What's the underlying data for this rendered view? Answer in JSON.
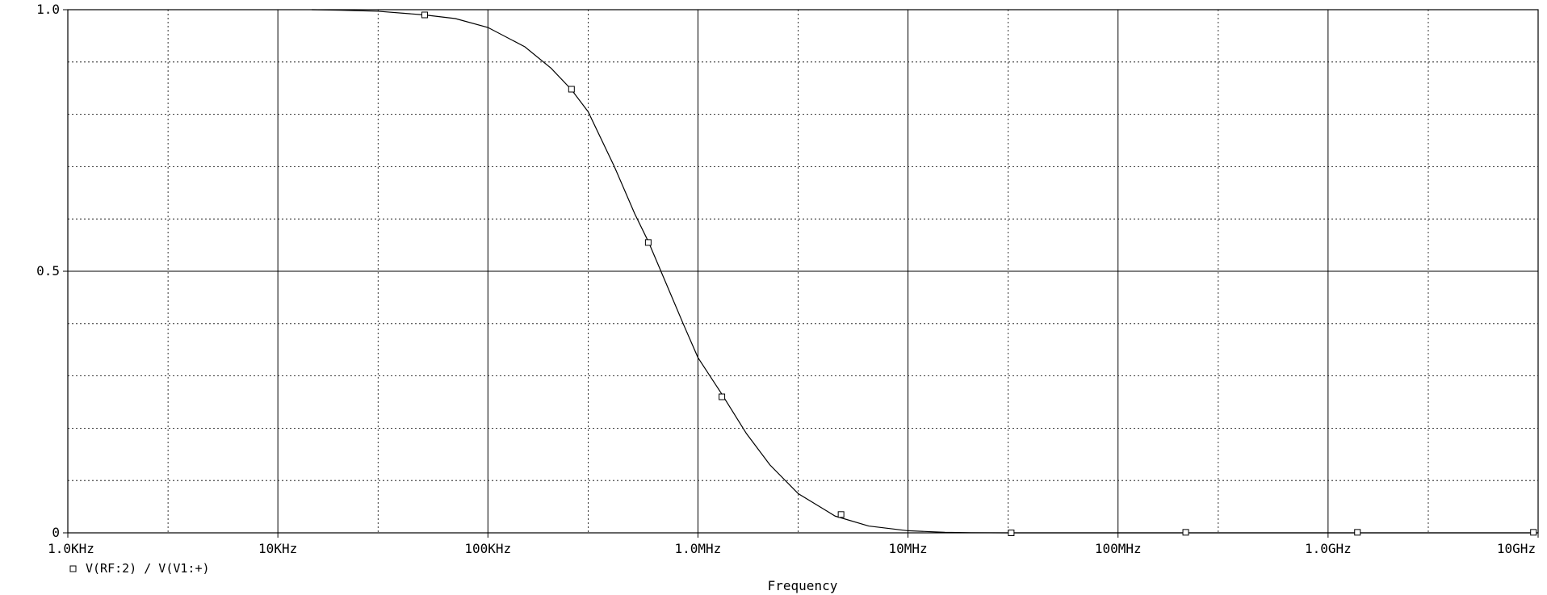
{
  "chart_data": {
    "type": "line",
    "title": "",
    "xlabel": "Frequency",
    "ylabel": "",
    "x_scale": "log",
    "x_unit": "Hz",
    "xlim": [
      1000,
      10000000000
    ],
    "ylim": [
      0,
      1.0
    ],
    "x_ticks": [
      {
        "value": 1000,
        "label": "1.0KHz"
      },
      {
        "value": 10000,
        "label": "10KHz"
      },
      {
        "value": 100000,
        "label": "100KHz"
      },
      {
        "value": 1000000,
        "label": "1.0MHz"
      },
      {
        "value": 10000000,
        "label": "10MHz"
      },
      {
        "value": 100000000,
        "label": "100MHz"
      },
      {
        "value": 1000000000,
        "label": "1.0GHz"
      },
      {
        "value": 10000000000,
        "label": "10GHz"
      }
    ],
    "y_ticks": [
      {
        "value": 0,
        "label": "0"
      },
      {
        "value": 0.5,
        "label": "0.5"
      },
      {
        "value": 1.0,
        "label": "1.0"
      }
    ],
    "grid": true,
    "legend_position": "bottom-left",
    "series": [
      {
        "name": "V(RF:2) / V(V1:+)",
        "marker": "square",
        "x": [
          14500,
          20000,
          30000,
          50000,
          70000,
          100000,
          150000,
          200000,
          250000,
          300000,
          400000,
          500000,
          580000,
          700000,
          850000,
          1000000,
          1300000,
          1700000,
          2200000,
          3000000,
          4500000,
          6500000,
          10000000,
          15000000,
          20000000,
          30000000,
          50000000,
          100000000,
          200000000,
          500000000,
          1000000000,
          1350000000,
          3000000000,
          10000000000
        ],
        "y": [
          1.0,
          0.999,
          0.997,
          0.99,
          0.983,
          0.966,
          0.929,
          0.888,
          0.847,
          0.805,
          0.7,
          0.61,
          0.557,
          0.48,
          0.4,
          0.335,
          0.265,
          0.19,
          0.13,
          0.075,
          0.032,
          0.013,
          0.004,
          0.001,
          0.0003,
          0.0,
          0.0,
          0.0,
          0.0,
          0.0,
          0.0,
          0.0,
          0.0,
          0.0
        ]
      }
    ],
    "markers": {
      "x": [
        50000,
        250000,
        580000,
        1300000,
        4800000,
        31000000,
        210000000,
        1380000000,
        9500000000
      ],
      "y": [
        0.99,
        0.848,
        0.555,
        0.26,
        0.035,
        0.0,
        0.001,
        0.001,
        0.001
      ]
    }
  }
}
